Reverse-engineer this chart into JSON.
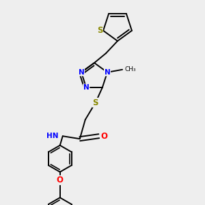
{
  "bg_color": "#eeeeee",
  "bond_color": "#000000",
  "bond_width": 1.4,
  "atom_colors": {
    "N": "#0000ff",
    "S": "#888800",
    "O": "#ff0000",
    "C": "#000000",
    "H": "#555555"
  },
  "font_size": 7.5,
  "fig_size": [
    3.0,
    3.0
  ],
  "dpi": 100
}
